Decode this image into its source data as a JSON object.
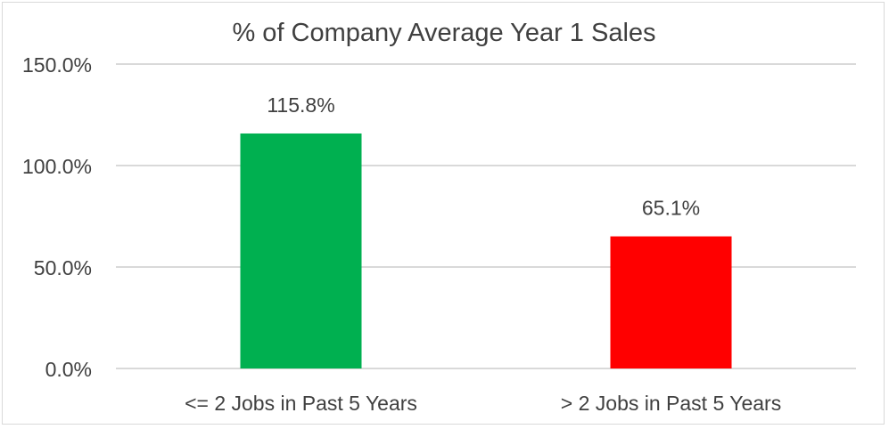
{
  "chart_data": {
    "type": "bar",
    "title": "% of Company Average Year 1 Sales",
    "categories": [
      "<= 2 Jobs in Past 5 Years",
      "> 2 Jobs in Past 5 Years"
    ],
    "values": [
      115.8,
      65.1
    ],
    "data_labels": [
      "115.8%",
      "65.1%"
    ],
    "bar_colors": [
      "#00b050",
      "#ff0000"
    ],
    "ylim": [
      0,
      150
    ],
    "y_ticks": [
      0,
      50,
      100,
      150
    ],
    "y_tick_labels": [
      "0.0%",
      "50.0%",
      "100.0%",
      "150.0%"
    ],
    "grid": true,
    "legend": "none"
  }
}
